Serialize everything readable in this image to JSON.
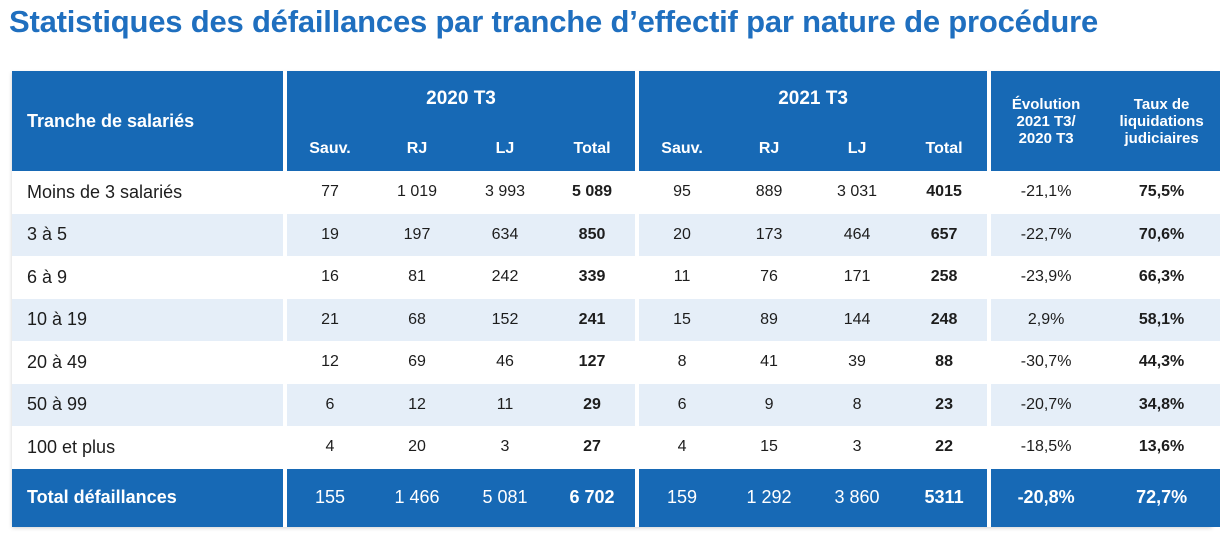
{
  "title": "Statistiques des défaillances par tranche d’effectif par nature de procédure",
  "header": {
    "tranche": "Tranche de salariés",
    "group_2020": "2020 T3",
    "group_2021": "2021 T3",
    "evolution": [
      "Évolution",
      "2021 T3/",
      "2020 T3"
    ],
    "taux": [
      "Taux de",
      "liquidations",
      "judiciaires"
    ],
    "sub": [
      "Sauv.",
      "RJ",
      "LJ",
      "Total"
    ]
  },
  "colors": {
    "header_blue": "#1769b5",
    "title_blue": "#1f6fbf",
    "stripe": "#e5eef8"
  },
  "rows": [
    {
      "label": "Moins de 3 salariés",
      "y2020": [
        "77",
        "1 019",
        "3 993",
        "5 089"
      ],
      "y2021": [
        "95",
        "889",
        "3 031",
        "4015"
      ],
      "evolution": "-21,1%",
      "taux": "75,5%"
    },
    {
      "label": "3 à 5",
      "y2020": [
        "19",
        "197",
        "634",
        "850"
      ],
      "y2021": [
        "20",
        "173",
        "464",
        "657"
      ],
      "evolution": "-22,7%",
      "taux": "70,6%"
    },
    {
      "label": "6 à 9",
      "y2020": [
        "16",
        "81",
        "242",
        "339"
      ],
      "y2021": [
        "11",
        "76",
        "171",
        "258"
      ],
      "evolution": "-23,9%",
      "taux": "66,3%"
    },
    {
      "label": "10 à 19",
      "y2020": [
        "21",
        "68",
        "152",
        "241"
      ],
      "y2021": [
        "15",
        "89",
        "144",
        "248"
      ],
      "evolution": "2,9%",
      "taux": "58,1%"
    },
    {
      "label": "20 à 49",
      "y2020": [
        "12",
        "69",
        "46",
        "127"
      ],
      "y2021": [
        "8",
        "41",
        "39",
        "88"
      ],
      "evolution": "-30,7%",
      "taux": "44,3%"
    },
    {
      "label": "50 à 99",
      "y2020": [
        "6",
        "12",
        "11",
        "29"
      ],
      "y2021": [
        "6",
        "9",
        "8",
        "23"
      ],
      "evolution": "-20,7%",
      "taux": "34,8%"
    },
    {
      "label": "100 et plus",
      "y2020": [
        "4",
        "20",
        "3",
        "27"
      ],
      "y2021": [
        "4",
        "15",
        "3",
        "22"
      ],
      "evolution": "-18,5%",
      "taux": "13,6%"
    }
  ],
  "total": {
    "label": "Total défaillances",
    "y2020": [
      "155",
      "1 466",
      "5 081",
      "6 702"
    ],
    "y2021": [
      "159",
      "1 292",
      "3 860",
      "5311"
    ],
    "evolution": "-20,8%",
    "taux": "72,7%"
  }
}
